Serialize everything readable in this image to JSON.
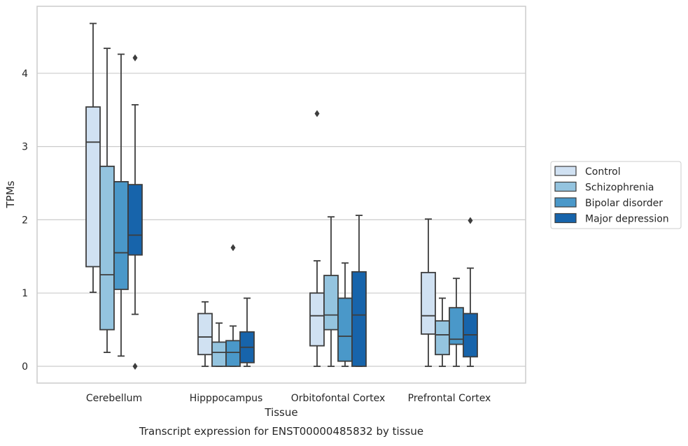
{
  "chart_data": {
    "type": "box",
    "title": "Transcript expression for ENST00000485832 by tissue",
    "xlabel": "Tissue",
    "ylabel": "TPMs",
    "ylim": [
      -0.22,
      4.9
    ],
    "yticks": [
      0,
      1,
      2,
      3,
      4
    ],
    "grid": "horizontal",
    "legend_position": "right",
    "categories": [
      "Cerebellum",
      "Hipppocampus",
      "Orbitofontal Cortex",
      "Prefrontal Cortex"
    ],
    "series": [
      {
        "name": "Control",
        "color": "#d0e1f2",
        "boxes": [
          {
            "whisker_low": 1.01,
            "q1": 1.36,
            "median": 3.06,
            "q3": 3.54,
            "whisker_high": 4.68,
            "outliers": []
          },
          {
            "whisker_low": 0.0,
            "q1": 0.16,
            "median": 0.4,
            "q3": 0.72,
            "whisker_high": 0.88,
            "outliers": []
          },
          {
            "whisker_low": 0.0,
            "q1": 0.28,
            "median": 0.69,
            "q3": 1.0,
            "whisker_high": 1.44,
            "outliers": [
              3.45
            ]
          },
          {
            "whisker_low": 0.0,
            "q1": 0.44,
            "median": 0.69,
            "q3": 1.28,
            "whisker_high": 2.01,
            "outliers": []
          }
        ]
      },
      {
        "name": "Schizophrenia",
        "color": "#94c4df",
        "boxes": [
          {
            "whisker_low": 0.19,
            "q1": 0.5,
            "median": 1.25,
            "q3": 2.73,
            "whisker_high": 4.34,
            "outliers": []
          },
          {
            "whisker_low": 0.0,
            "q1": 0.0,
            "median": 0.19,
            "q3": 0.33,
            "whisker_high": 0.59,
            "outliers": []
          },
          {
            "whisker_low": 0.0,
            "q1": 0.5,
            "median": 0.7,
            "q3": 1.24,
            "whisker_high": 2.04,
            "outliers": []
          },
          {
            "whisker_low": 0.0,
            "q1": 0.16,
            "median": 0.43,
            "q3": 0.62,
            "whisker_high": 0.93,
            "outliers": []
          }
        ]
      },
      {
        "name": "Bipolar disorder",
        "color": "#4a98c9",
        "boxes": [
          {
            "whisker_low": 0.14,
            "q1": 1.05,
            "median": 1.55,
            "q3": 2.52,
            "whisker_high": 4.26,
            "outliers": []
          },
          {
            "whisker_low": 0.0,
            "q1": 0.0,
            "median": 0.19,
            "q3": 0.35,
            "whisker_high": 0.55,
            "outliers": [
              1.62
            ]
          },
          {
            "whisker_low": 0.0,
            "q1": 0.07,
            "median": 0.41,
            "q3": 0.93,
            "whisker_high": 1.41,
            "outliers": []
          },
          {
            "whisker_low": 0.0,
            "q1": 0.3,
            "median": 0.37,
            "q3": 0.8,
            "whisker_high": 1.2,
            "outliers": []
          }
        ]
      },
      {
        "name": "Major depression",
        "color": "#1764ab",
        "boxes": [
          {
            "whisker_low": 0.71,
            "q1": 1.52,
            "median": 1.79,
            "q3": 2.48,
            "whisker_high": 3.57,
            "outliers": [
              0.0,
              4.21
            ]
          },
          {
            "whisker_low": 0.0,
            "q1": 0.05,
            "median": 0.26,
            "q3": 0.47,
            "whisker_high": 0.93,
            "outliers": []
          },
          {
            "whisker_low": 0.0,
            "q1": 0.0,
            "median": 0.7,
            "q3": 1.29,
            "whisker_high": 2.06,
            "outliers": []
          },
          {
            "whisker_low": 0.0,
            "q1": 0.13,
            "median": 0.43,
            "q3": 0.72,
            "whisker_high": 1.34,
            "outliers": [
              1.99
            ]
          }
        ]
      }
    ]
  }
}
